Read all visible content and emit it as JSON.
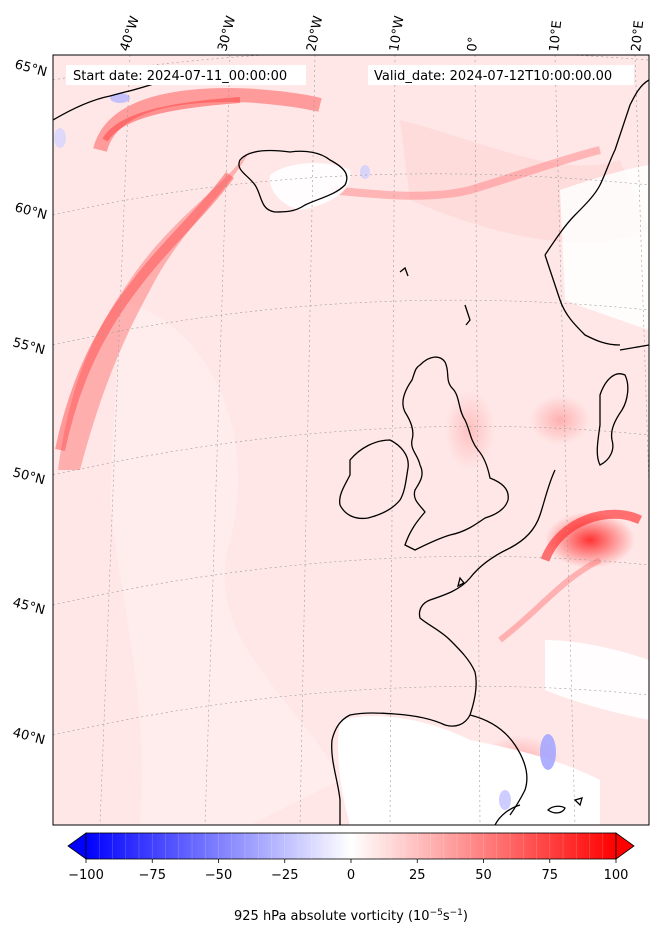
{
  "header": {
    "start_date": "Start date: 2024-07-11_00:00:00",
    "valid_date": "Valid_date: 2024-07-12T10:00:00.00"
  },
  "map": {
    "projection_labels": {
      "top": [
        "40°W",
        "30°W",
        "20°W",
        "10°W",
        "0°",
        "10°E",
        "20°E"
      ],
      "left": [
        "65°N",
        "60°N",
        "55°N",
        "50°N",
        "45°N",
        "40°N"
      ]
    },
    "colors": {
      "land_outline": "#000000",
      "background_field": "#ffe6e6",
      "strong_positive": "#ff3030",
      "negative": "#b3b3ff"
    }
  },
  "colorbar": {
    "label": "925 hPa absolute vorticity (10",
    "label_exp1": "−5",
    "label_mid": "s",
    "label_exp2": "−1",
    "label_end": ")",
    "min": -100,
    "max": 100,
    "ticks": [
      "−100",
      "−75",
      "−50",
      "−25",
      "0",
      "25",
      "50",
      "75",
      "100"
    ],
    "cmap": "bwr"
  }
}
